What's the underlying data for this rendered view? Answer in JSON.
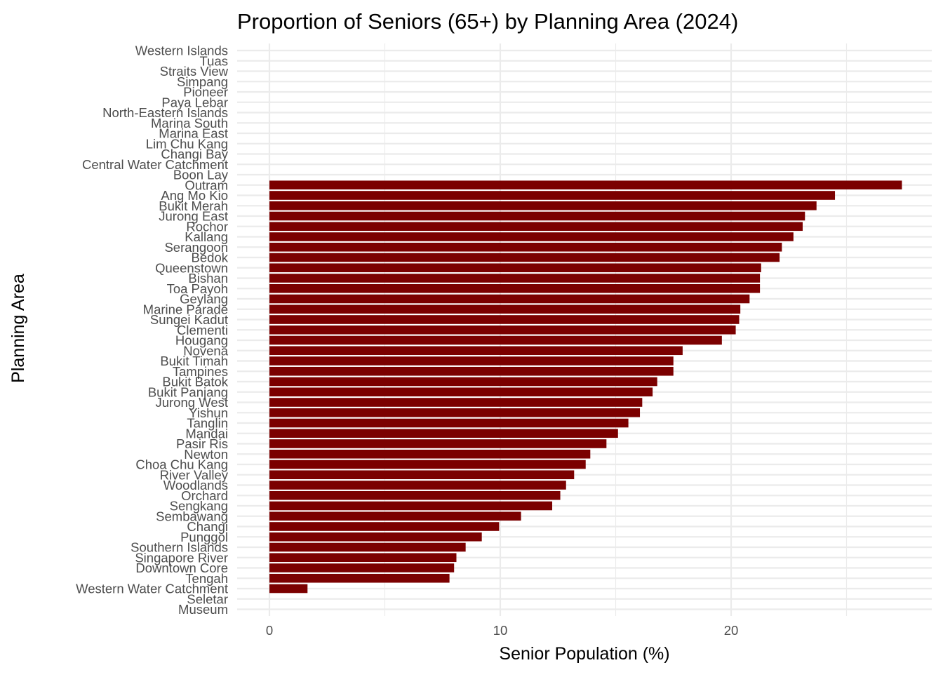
{
  "chart_data": {
    "type": "bar",
    "orientation": "horizontal",
    "title": "Proportion of Seniors (65+) by Planning Area (2024)",
    "xlabel": "Senior Population (%)",
    "ylabel": "Planning Area",
    "xlim": [
      -1.5,
      28.5
    ],
    "x_ticks": [
      0,
      10,
      20
    ],
    "grid": true,
    "bar_color": "#7b0000",
    "categories": [
      "Western Islands",
      "Tuas",
      "Straits View",
      "Simpang",
      "Pioneer",
      "Paya Lebar",
      "North-Eastern Islands",
      "Marina South",
      "Marina East",
      "Lim Chu Kang",
      "Changi Bay",
      "Central Water Catchment",
      "Boon Lay",
      "Outram",
      "Ang Mo Kio",
      "Bukit Merah",
      "Jurong East",
      "Rochor",
      "Kallang",
      "Serangoon",
      "Bedok",
      "Queenstown",
      "Bishan",
      "Toa Payoh",
      "Geylang",
      "Marine Parade",
      "Sungei Kadut",
      "Clementi",
      "Hougang",
      "Novena",
      "Bukit Timah",
      "Tampines",
      "Bukit Batok",
      "Bukit Panjang",
      "Jurong West",
      "Yishun",
      "Tanglin",
      "Mandai",
      "Pasir Ris",
      "Newton",
      "Choa Chu Kang",
      "River Valley",
      "Woodlands",
      "Orchard",
      "Sengkang",
      "Sembawang",
      "Changi",
      "Punggol",
      "Southern Islands",
      "Singapore River",
      "Downtown Core",
      "Tengah",
      "Western Water Catchment",
      "Seletar",
      "Museum"
    ],
    "values": [
      null,
      null,
      null,
      null,
      null,
      null,
      null,
      null,
      null,
      null,
      null,
      null,
      null,
      27.4,
      24.5,
      23.7,
      23.2,
      23.1,
      22.7,
      22.2,
      22.1,
      21.3,
      21.25,
      21.25,
      20.8,
      20.4,
      20.35,
      20.2,
      19.6,
      17.9,
      17.5,
      17.5,
      16.8,
      16.6,
      16.15,
      16.05,
      15.55,
      15.1,
      14.6,
      13.9,
      13.7,
      13.2,
      12.85,
      12.6,
      12.25,
      10.9,
      9.95,
      9.2,
      8.5,
      8.1,
      8.0,
      7.8,
      1.65,
      null,
      null
    ]
  }
}
